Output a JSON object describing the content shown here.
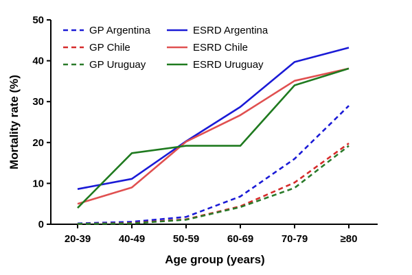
{
  "chart_data": {
    "type": "line",
    "title": "",
    "xlabel": "Age group (years)",
    "ylabel": "Mortality rate  (%)",
    "categories": [
      "20-39",
      "40-49",
      "50-59",
      "60-69",
      "70-79",
      "≥80"
    ],
    "ylim": [
      0,
      50
    ],
    "yticks": [
      0,
      10,
      20,
      30,
      40,
      50
    ],
    "grid": false,
    "legend_position": "top-left",
    "series": [
      {
        "name": "GP Argentina",
        "color": "#1a1ad6",
        "dash": true,
        "values": [
          0.2,
          0.6,
          1.8,
          6.8,
          16.0,
          29.0
        ]
      },
      {
        "name": "GP Chile",
        "color": "#d62a2a",
        "dash": true,
        "values": [
          0.1,
          0.3,
          1.2,
          4.4,
          10.2,
          19.8
        ]
      },
      {
        "name": "GP Uruguay",
        "color": "#2a7a2a",
        "dash": true,
        "values": [
          0.1,
          0.2,
          1.1,
          4.2,
          8.9,
          19.2
        ]
      },
      {
        "name": "ESRD Argentina",
        "color": "#1a1ad6",
        "dash": false,
        "values": [
          8.6,
          11.1,
          20.3,
          28.7,
          39.7,
          43.2
        ]
      },
      {
        "name": "ESRD Chile",
        "color": "#e05050",
        "dash": false,
        "values": [
          5.0,
          9.0,
          20.2,
          26.7,
          35.1,
          38.1
        ]
      },
      {
        "name": "ESRD Uruguay",
        "color": "#1f7a1f",
        "dash": false,
        "values": [
          4.0,
          17.4,
          19.2,
          19.2,
          34.0,
          38.1
        ]
      }
    ]
  }
}
